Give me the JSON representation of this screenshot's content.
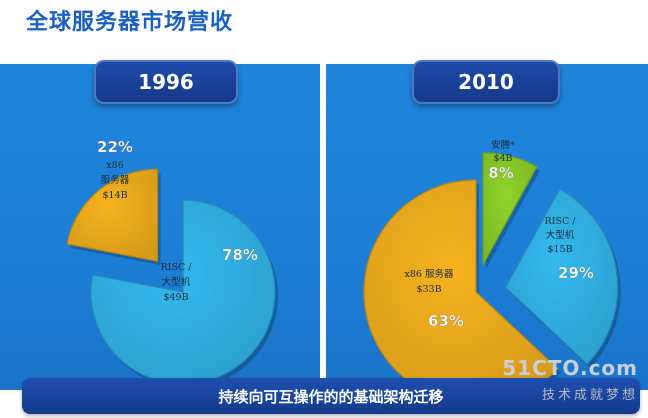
{
  "title": "全球服务器市场营收",
  "footer": "持续向可互操作的的基础架构迁移",
  "watermark": {
    "logo": "51CTO.com",
    "subtitle": "技术成就梦想"
  },
  "colors": {
    "risc": "#33b9ee",
    "x86": "#f6b31e",
    "itanium": "#8fd42a",
    "band": "#1f86dc"
  },
  "chart_data": [
    {
      "type": "pie",
      "year": "1996",
      "slices": [
        {
          "pct_label": "78%",
          "value": 78,
          "lines": [
            "RISC /",
            "大型机",
            "$49B"
          ],
          "color": "#33b9ee"
        },
        {
          "pct_label": "22%",
          "value": 22,
          "lines": [
            "x86",
            "服务器",
            "$14B"
          ],
          "color": "#f6b31e"
        }
      ]
    },
    {
      "type": "pie",
      "year": "2010",
      "slices": [
        {
          "pct_label": "8%",
          "value": 8,
          "lines": [
            "安腾*",
            "$4B"
          ],
          "color": "#8fd42a"
        },
        {
          "pct_label": "29%",
          "value": 29,
          "lines": [
            "RISC /",
            "大型机",
            "$15B"
          ],
          "color": "#33b9ee"
        },
        {
          "pct_label": "63%",
          "value": 63,
          "lines": [
            "x86 服务器",
            "$33B"
          ],
          "color": "#f6b31e"
        }
      ]
    }
  ]
}
